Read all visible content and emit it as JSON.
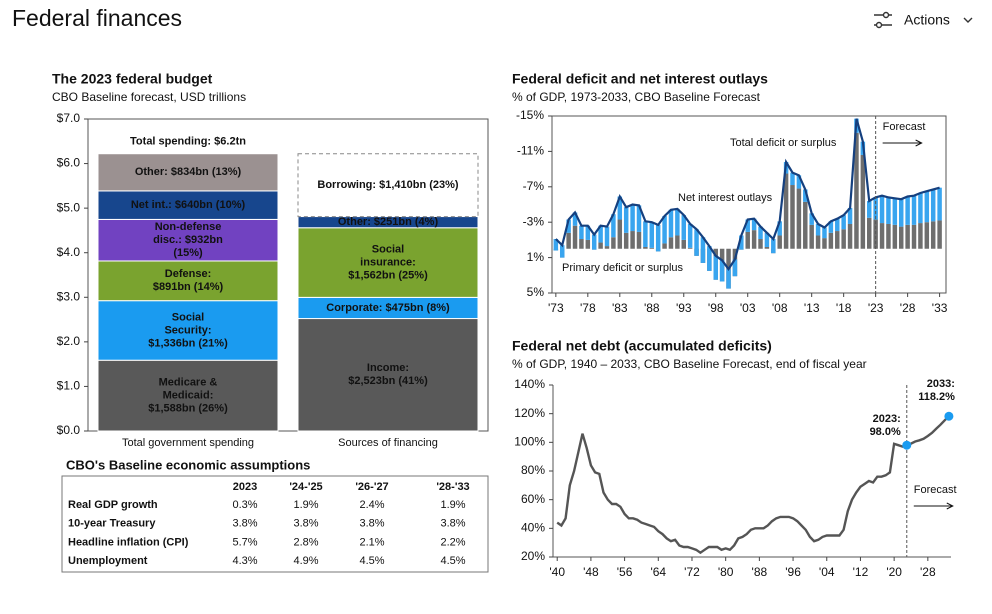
{
  "header": {
    "title": "Federal finances",
    "actions": "Actions"
  },
  "chart_data": [
    {
      "type": "stacked_bar",
      "title": "The 2023 federal budget",
      "subtitle": "CBO Baseline forecast, USD trillions",
      "categories": [
        "Total government spending",
        "Sources of financing"
      ],
      "ylim": [
        0,
        7
      ],
      "yticks": [
        {
          "value": 0,
          "label": "$0.0"
        },
        {
          "value": 1,
          "label": "$1.0"
        },
        {
          "value": 2,
          "label": "$2.0"
        },
        {
          "value": 3,
          "label": "$3.0"
        },
        {
          "value": 4,
          "label": "$4.0"
        },
        {
          "value": 5,
          "label": "$5.0"
        },
        {
          "value": 6,
          "label": "$6.0"
        },
        {
          "value": 7,
          "label": "$7.0"
        }
      ],
      "stacks": [
        {
          "total_label": "Total spending: $6.2tn",
          "segments": [
            {
              "label": [
                "Medicare &",
                "Medicaid:",
                "$1,588bn (26%)"
              ],
              "value": 1.588,
              "color": "#595959"
            },
            {
              "label": [
                "Social",
                "Security:",
                "$1,336bn (21%)"
              ],
              "value": 1.336,
              "color": "#1a9bf0"
            },
            {
              "label": [
                "Defense:",
                "$891bn (14%)"
              ],
              "value": 0.891,
              "color": "#7aa32f"
            },
            {
              "label": [
                "Non-defense",
                "disc.: $932bn",
                "(15%)"
              ],
              "value": 0.932,
              "color": "#7142c1"
            },
            {
              "label": [
                "Net int.: $640bn (10%)"
              ],
              "value": 0.64,
              "color": "#17468d"
            },
            {
              "label": [
                "Other: $834bn (13%)"
              ],
              "value": 0.834,
              "color": "#9b9191"
            }
          ]
        },
        {
          "segments": [
            {
              "label": [
                "Income:",
                "$2,523bn (41%)"
              ],
              "value": 2.523,
              "color": "#595959"
            },
            {
              "label": [
                "Corporate: $475bn (8%)"
              ],
              "value": 0.475,
              "color": "#1a9bf0"
            },
            {
              "label": [
                "Social",
                "insurance:",
                "$1,562bn (25%)"
              ],
              "value": 1.562,
              "color": "#7aa32f"
            },
            {
              "label": [
                "Other: $251bn (4%)"
              ],
              "value": 0.251,
              "color": "#17468d"
            },
            {
              "label": [
                "Borrowing: $1,410bn (23%)"
              ],
              "value": 1.41,
              "color": "#ffffff",
              "dashed": true
            }
          ]
        }
      ]
    },
    {
      "type": "combo",
      "title": "Federal deficit and net interest outlays",
      "subtitle": "% of GDP, 1973-2033, CBO Baseline Forecast",
      "y_reversed": true,
      "ylim": [
        -15,
        5
      ],
      "yticks": [
        {
          "value": -15,
          "label": "-15%"
        },
        {
          "value": -11,
          "label": "-11%"
        },
        {
          "value": -7,
          "label": "-7%"
        },
        {
          "value": -3,
          "label": "-3%"
        },
        {
          "value": 1,
          "label": "1%"
        },
        {
          "value": 5,
          "label": "5%"
        }
      ],
      "xlim": [
        1972.4,
        2034
      ],
      "xticks": [
        {
          "value": 1973,
          "label": "'73"
        },
        {
          "value": 1978,
          "label": "'78"
        },
        {
          "value": 1983,
          "label": "'83"
        },
        {
          "value": 1988,
          "label": "'88"
        },
        {
          "value": 1993,
          "label": "'93"
        },
        {
          "value": 1998,
          "label": "'98"
        },
        {
          "value": 2003,
          "label": "'03"
        },
        {
          "value": 2008,
          "label": "'08"
        },
        {
          "value": 2013,
          "label": "'13"
        },
        {
          "value": 2018,
          "label": "'18"
        },
        {
          "value": 2023,
          "label": "'23"
        },
        {
          "value": 2028,
          "label": "'28"
        },
        {
          "value": 2033,
          "label": "'33"
        }
      ],
      "forecast": {
        "label": "Forecast",
        "x": 2023
      },
      "x": [
        1973,
        1974,
        1975,
        1976,
        1977,
        1978,
        1979,
        1980,
        1981,
        1982,
        1983,
        1984,
        1985,
        1986,
        1987,
        1988,
        1989,
        1990,
        1991,
        1992,
        1993,
        1994,
        1995,
        1996,
        1997,
        1998,
        1999,
        2000,
        2001,
        2002,
        2003,
        2004,
        2005,
        2006,
        2007,
        2008,
        2009,
        2010,
        2011,
        2012,
        2013,
        2014,
        2015,
        2016,
        2017,
        2018,
        2019,
        2020,
        2021,
        2022,
        2023,
        2024,
        2025,
        2026,
        2027,
        2028,
        2029,
        2030,
        2031,
        2032,
        2033
      ],
      "series": [
        {
          "name": "Primary deficit or surplus",
          "type": "bar",
          "color": "#6e6e6e",
          "values": [
            0.2,
            1.0,
            -1.8,
            -2.6,
            -1.1,
            -1.0,
            0.1,
            -0.7,
            -0.3,
            -1.3,
            -3.3,
            -1.8,
            -2.0,
            -1.9,
            -0.2,
            -0.1,
            0.3,
            -0.6,
            -1.3,
            -1.5,
            -1.0,
            -0.1,
            0.8,
            1.6,
            2.5,
            3.5,
            3.7,
            4.5,
            3.1,
            0.1,
            -1.9,
            -2.1,
            -1.1,
            -0.2,
            0.5,
            -1.5,
            -8.5,
            -7.2,
            -6.8,
            -5.3,
            -2.7,
            -1.5,
            -1.2,
            -1.8,
            -2.0,
            -2.2,
            -2.8,
            -13.1,
            -10.6,
            -3.5,
            -3.3,
            -2.9,
            -2.8,
            -2.7,
            -2.5,
            -2.7,
            -2.7,
            -2.9,
            -3.0,
            -3.1,
            -3.2
          ]
        },
        {
          "name": "Net interest outlays",
          "type": "bar",
          "color": "#39a5ef",
          "values": [
            -1.3,
            -1.4,
            -1.5,
            -1.5,
            -1.5,
            -1.6,
            -1.7,
            -1.9,
            -2.2,
            -2.6,
            -2.6,
            -2.9,
            -3.0,
            -3.0,
            -2.9,
            -2.9,
            -3.0,
            -3.1,
            -3.1,
            -3.0,
            -2.8,
            -2.7,
            -3.0,
            -2.9,
            -2.8,
            -2.7,
            -2.4,
            -2.2,
            -1.9,
            -1.6,
            -1.4,
            -1.3,
            -1.4,
            -1.6,
            -1.6,
            -1.6,
            -1.3,
            -1.4,
            -1.5,
            -1.4,
            -1.3,
            -1.3,
            -1.2,
            -1.3,
            -1.4,
            -1.6,
            -1.8,
            -1.6,
            -1.5,
            -1.9,
            -2.5,
            -3.1,
            -3.0,
            -3.0,
            -3.1,
            -3.2,
            -3.3,
            -3.4,
            -3.5,
            -3.6,
            -3.7
          ]
        },
        {
          "name": "Total deficit or surplus",
          "type": "line",
          "color": "#15407f",
          "values": [
            -1.1,
            -0.4,
            -3.3,
            -4.1,
            -2.6,
            -2.6,
            -1.6,
            -2.6,
            -2.5,
            -3.9,
            -5.9,
            -4.7,
            -5.0,
            -4.9,
            -3.1,
            -3.0,
            -2.7,
            -3.7,
            -4.4,
            -4.5,
            -3.8,
            -2.8,
            -2.2,
            -1.3,
            -0.3,
            0.8,
            1.3,
            2.3,
            1.2,
            -1.5,
            -3.3,
            -3.4,
            -2.5,
            -1.8,
            -1.1,
            -3.1,
            -9.8,
            -8.6,
            -8.3,
            -6.7,
            -4.0,
            -2.8,
            -2.4,
            -3.1,
            -3.4,
            -3.8,
            -4.6,
            -14.7,
            -12.1,
            -5.4,
            -5.8,
            -6.0,
            -5.8,
            -5.7,
            -5.6,
            -5.9,
            -6.0,
            -6.3,
            -6.5,
            -6.7,
            -6.9
          ]
        }
      ]
    },
    {
      "type": "line",
      "title": "Federal net debt (accumulated deficits)",
      "subtitle": "% of GDP, 1940 – 2033, CBO Baseline Forecast, end of fiscal year",
      "ylim": [
        20,
        140
      ],
      "yticks": [
        {
          "value": 20,
          "label": "20%"
        },
        {
          "value": 40,
          "label": "40%"
        },
        {
          "value": 60,
          "label": "60%"
        },
        {
          "value": 80,
          "label": "80%"
        },
        {
          "value": 100,
          "label": "100%"
        },
        {
          "value": 120,
          "label": "120%"
        },
        {
          "value": 140,
          "label": "140%"
        }
      ],
      "xlim": [
        1939,
        2033.5
      ],
      "xticks": [
        {
          "value": 1940,
          "label": "'40"
        },
        {
          "value": 1948,
          "label": "'48"
        },
        {
          "value": 1956,
          "label": "'56"
        },
        {
          "value": 1964,
          "label": "'64"
        },
        {
          "value": 1972,
          "label": "'72"
        },
        {
          "value": 1980,
          "label": "'80"
        },
        {
          "value": 1988,
          "label": "'88"
        },
        {
          "value": 1996,
          "label": "'96"
        },
        {
          "value": 2004,
          "label": "'04"
        },
        {
          "value": 2012,
          "label": "'12"
        },
        {
          "value": 2020,
          "label": "'20"
        },
        {
          "value": 2028,
          "label": "'28"
        }
      ],
      "forecast": {
        "label": "Forecast",
        "x": 2023
      },
      "color": "#555555",
      "x": [
        1940,
        1941,
        1942,
        1943,
        1944,
        1945,
        1946,
        1947,
        1948,
        1949,
        1950,
        1951,
        1952,
        1953,
        1954,
        1955,
        1956,
        1957,
        1958,
        1959,
        1960,
        1961,
        1962,
        1963,
        1964,
        1965,
        1966,
        1967,
        1968,
        1969,
        1970,
        1971,
        1972,
        1973,
        1974,
        1975,
        1976,
        1977,
        1978,
        1979,
        1980,
        1981,
        1982,
        1983,
        1984,
        1985,
        1986,
        1987,
        1988,
        1989,
        1990,
        1991,
        1992,
        1993,
        1994,
        1995,
        1996,
        1997,
        1998,
        1999,
        2000,
        2001,
        2002,
        2003,
        2004,
        2005,
        2006,
        2007,
        2008,
        2009,
        2010,
        2011,
        2012,
        2013,
        2014,
        2015,
        2016,
        2017,
        2018,
        2019,
        2020,
        2021,
        2022,
        2023,
        2024,
        2025,
        2026,
        2027,
        2028,
        2029,
        2030,
        2031,
        2032,
        2033
      ],
      "values": [
        44,
        42,
        47,
        70,
        80,
        93,
        106,
        96,
        84,
        79,
        78,
        65,
        60,
        57,
        57,
        55,
        50,
        47,
        47,
        46,
        44,
        43,
        42,
        41,
        38,
        36,
        33,
        31,
        32,
        28,
        27,
        27,
        26,
        25,
        23,
        25,
        27,
        27,
        27,
        25,
        26,
        25,
        28,
        33,
        34,
        36,
        39,
        40,
        40,
        40,
        42,
        45,
        47,
        48,
        48,
        48,
        47,
        45,
        42,
        39,
        34,
        31,
        32,
        34,
        35,
        35,
        35,
        35,
        39,
        52,
        60,
        65,
        69,
        71,
        73,
        72,
        76,
        76,
        77,
        79,
        99,
        98,
        97,
        98.0,
        99.1,
        100.6,
        101.4,
        102.5,
        104.4,
        106.6,
        109.6,
        112.3,
        115.4,
        118.2
      ],
      "annotations": [
        {
          "x": 2023,
          "y": 98.0,
          "label": [
            "2023:",
            "98.0%"
          ],
          "color": "#1a9bf0"
        },
        {
          "x": 2033,
          "y": 118.2,
          "label": [
            "2033:",
            "118.2%"
          ],
          "color": "#1a9bf0"
        }
      ]
    }
  ],
  "table": {
    "title": "CBO's Baseline economic assumptions",
    "columns": [
      "2023",
      "'24-'25",
      "'26-'27",
      "'28-'33"
    ],
    "rows": [
      {
        "label": "Real GDP growth",
        "cells": [
          "0.3%",
          "1.9%",
          "2.4%",
          "1.9%"
        ]
      },
      {
        "label": "10-year Treasury",
        "cells": [
          "3.8%",
          "3.8%",
          "3.8%",
          "3.8%"
        ]
      },
      {
        "label": "Headline inflation (CPI)",
        "cells": [
          "5.7%",
          "2.8%",
          "2.1%",
          "2.2%"
        ]
      },
      {
        "label": "Unemployment",
        "cells": [
          "4.3%",
          "4.9%",
          "4.5%",
          "4.5%"
        ]
      }
    ]
  }
}
